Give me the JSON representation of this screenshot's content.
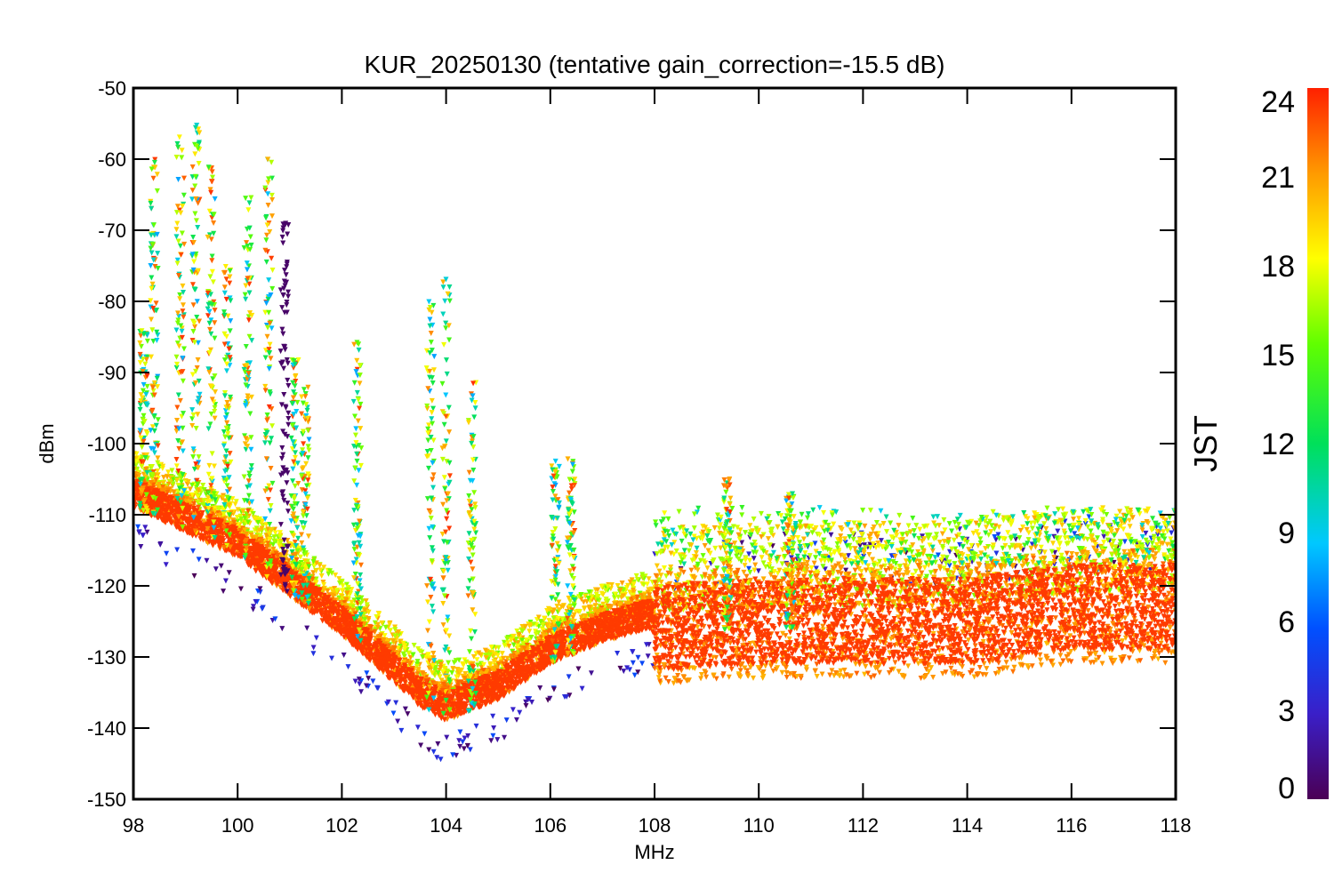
{
  "chart_data": {
    "type": "scatter",
    "title": "KUR_20250130 (tentative gain_correction=-15.5 dB)",
    "xlabel": "MHz",
    "ylabel": "dBm",
    "xlim": [
      98,
      118
    ],
    "ylim": [
      -150,
      -50
    ],
    "xticks": [
      98,
      100,
      102,
      104,
      106,
      108,
      110,
      112,
      114,
      116,
      118
    ],
    "xtick_labels": [
      "98",
      "100",
      "102",
      "104",
      "106",
      "108",
      "110",
      "112",
      "114",
      "116",
      "118"
    ],
    "yticks": [
      -150,
      -140,
      -130,
      -120,
      -110,
      -100,
      -90,
      -80,
      -70,
      -60,
      -50
    ],
    "ytick_labels": [
      "-150",
      "-140",
      "-130",
      "-120",
      "-110",
      "-100",
      "-90",
      "-80",
      "-70",
      "-60",
      "-50"
    ],
    "grid": false,
    "colorbar": {
      "label": "JST",
      "range": [
        0,
        24
      ],
      "ticks": [
        0,
        3,
        6,
        9,
        12,
        15,
        18,
        21,
        24
      ],
      "tick_labels": [
        "0",
        "3",
        "6",
        "9",
        "12",
        "15",
        "18",
        "21",
        "24"
      ],
      "colormap": "rainbow (purple to red)"
    },
    "noise_floor": {
      "description_series": "lower envelope approx., dBm vs MHz",
      "x": [
        98,
        100,
        102,
        103.5,
        104,
        105,
        106,
        107,
        107.9,
        108,
        110,
        112,
        114,
        116,
        118
      ],
      "y": [
        -109,
        -116,
        -127,
        -137,
        -139,
        -136,
        -131,
        -128,
        -126,
        -127,
        -126,
        -126,
        -126,
        -124,
        -124
      ]
    },
    "spur_peaks": {
      "x": [
        98.2,
        98.4,
        98.9,
        99.2,
        99.5,
        99.8,
        100.2,
        100.6,
        100.9,
        101.1,
        101.3,
        102.3,
        103.7,
        104.0,
        104.5,
        106.1,
        106.4,
        109.4,
        110.6
      ],
      "y": [
        -84,
        -60,
        -56,
        -55,
        -60,
        -75,
        -65,
        -60,
        -69,
        -88,
        -92,
        -85,
        -80,
        -76,
        -91,
        -102,
        -102,
        -105,
        -107
      ]
    }
  }
}
